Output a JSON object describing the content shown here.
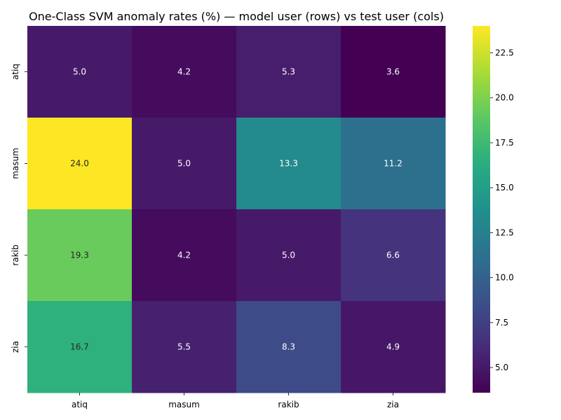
{
  "chart_data": {
    "type": "heatmap",
    "title": "One-Class SVM anomaly rates (%) — model user (rows) vs test user (cols)",
    "xlabel": "",
    "ylabel": "",
    "rows": [
      "atiq",
      "masum",
      "rakib",
      "zia"
    ],
    "cols": [
      "atiq",
      "masum",
      "rakib",
      "zia"
    ],
    "values": [
      [
        5.0,
        4.2,
        5.3,
        3.6
      ],
      [
        24.0,
        5.0,
        13.3,
        11.2
      ],
      [
        19.3,
        4.2,
        5.0,
        6.6
      ],
      [
        16.7,
        5.5,
        8.3,
        4.9
      ]
    ],
    "value_labels": [
      [
        "5.0",
        "4.2",
        "5.3",
        "3.6"
      ],
      [
        "24.0",
        "5.0",
        "13.3",
        "11.2"
      ],
      [
        "19.3",
        "4.2",
        "5.0",
        "6.6"
      ],
      [
        "16.7",
        "5.5",
        "8.3",
        "4.9"
      ]
    ],
    "colormap": "viridis",
    "colorbar": {
      "vmin": 3.6,
      "vmax": 24.0,
      "ticks": [
        5.0,
        7.5,
        10.0,
        12.5,
        15.0,
        17.5,
        20.0,
        22.5
      ],
      "tick_labels": [
        "5.0",
        "7.5",
        "10.0",
        "12.5",
        "15.0",
        "17.5",
        "20.0",
        "22.5"
      ]
    }
  }
}
